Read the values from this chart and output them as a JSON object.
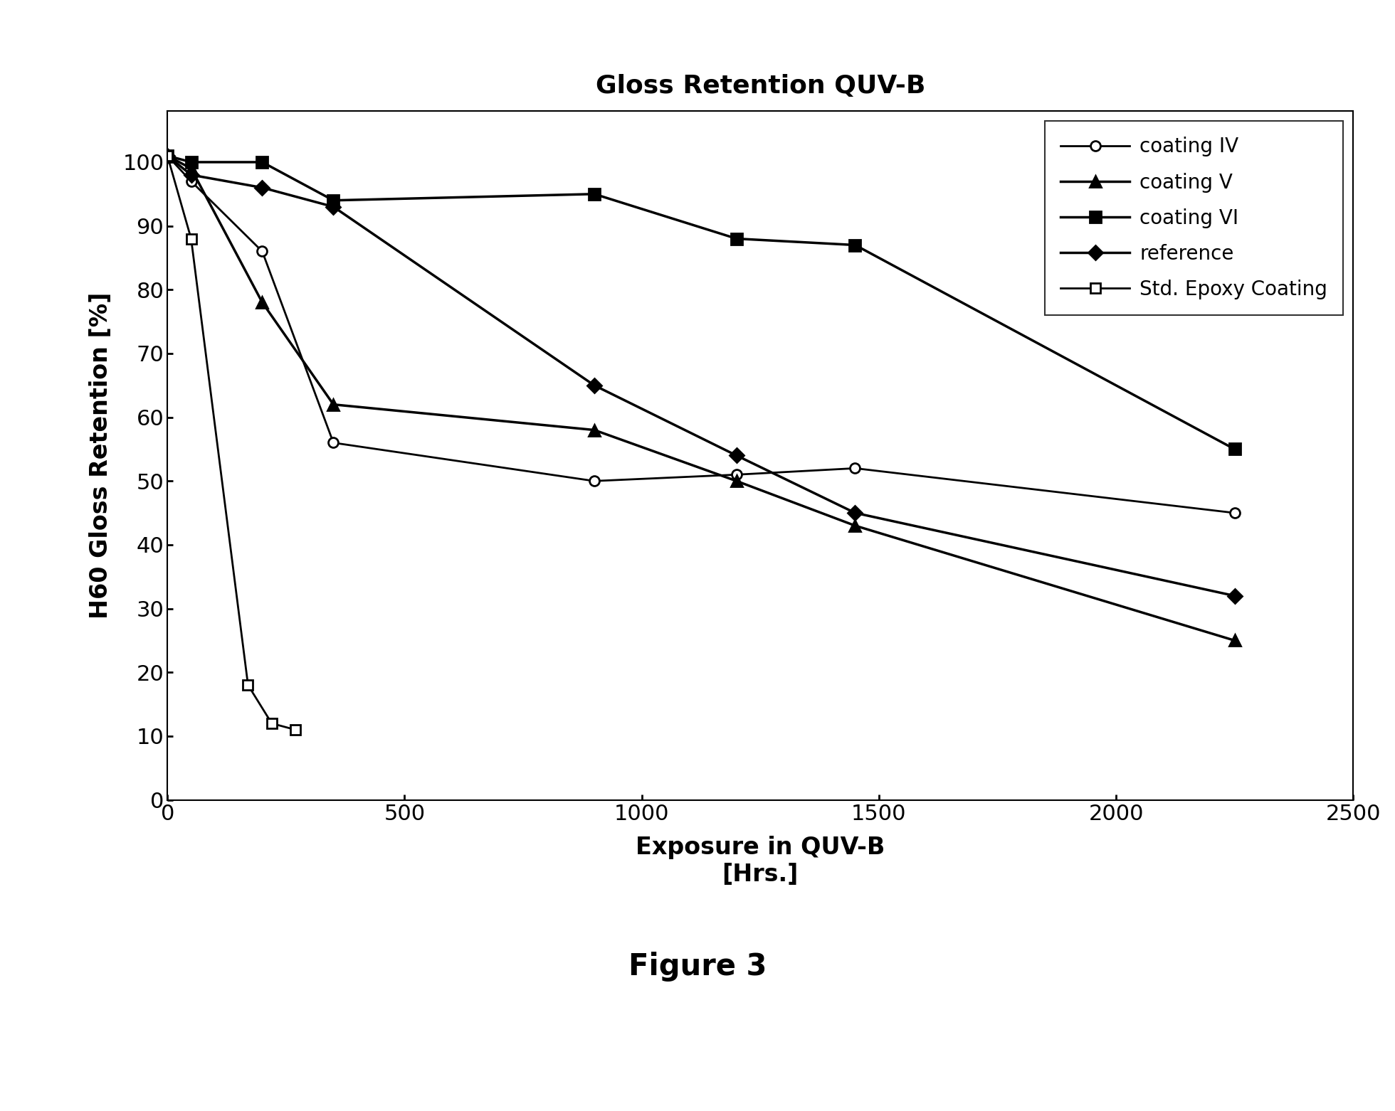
{
  "title": "Gloss Retention QUV-B",
  "xlabel_line1": "Exposure in QUV-B",
  "xlabel_line2": "[Hrs.]",
  "ylabel": "H60 Gloss Retention [%]",
  "figure_label": "Figure 3",
  "xlim": [
    0,
    2500
  ],
  "ylim": [
    0,
    108
  ],
  "xticks": [
    0,
    500,
    1000,
    1500,
    2000,
    2500
  ],
  "yticks": [
    0,
    10,
    20,
    30,
    40,
    50,
    60,
    70,
    80,
    90,
    100
  ],
  "series": [
    {
      "label": "coating IV",
      "x": [
        0,
        50,
        200,
        350,
        900,
        1200,
        1450,
        2250
      ],
      "y": [
        101,
        97,
        86,
        56,
        50,
        51,
        52,
        45
      ],
      "color": "#000000",
      "marker": "o",
      "markersize": 10,
      "linewidth": 2.0,
      "markerfacecolor": "white",
      "markeredgewidth": 2.0
    },
    {
      "label": "coating V",
      "x": [
        0,
        50,
        200,
        350,
        900,
        1200,
        1450,
        2250
      ],
      "y": [
        101,
        99,
        78,
        62,
        58,
        50,
        43,
        25
      ],
      "color": "#000000",
      "marker": "^",
      "markersize": 11,
      "linewidth": 2.5,
      "markerfacecolor": "#000000",
      "markeredgewidth": 2.0
    },
    {
      "label": "coating VI",
      "x": [
        0,
        50,
        200,
        350,
        900,
        1200,
        1450,
        2250
      ],
      "y": [
        101,
        100,
        100,
        94,
        95,
        88,
        87,
        55
      ],
      "color": "#000000",
      "marker": "s",
      "markersize": 11,
      "linewidth": 2.5,
      "markerfacecolor": "#000000",
      "markeredgewidth": 2.0
    },
    {
      "label": "reference",
      "x": [
        0,
        50,
        200,
        350,
        900,
        1200,
        1450,
        2250
      ],
      "y": [
        101,
        98,
        96,
        93,
        65,
        54,
        45,
        32
      ],
      "color": "#000000",
      "marker": "D",
      "markersize": 10,
      "linewidth": 2.5,
      "markerfacecolor": "#000000",
      "markeredgewidth": 2.0
    },
    {
      "label": "Std. Epoxy Coating",
      "x": [
        0,
        50,
        170,
        220,
        270
      ],
      "y": [
        101,
        88,
        18,
        12,
        11
      ],
      "color": "#000000",
      "marker": "s",
      "markersize": 10,
      "linewidth": 2.0,
      "markerfacecolor": "white",
      "markeredgewidth": 2.0
    }
  ],
  "tick_fontsize": 22,
  "label_fontsize": 24,
  "title_fontsize": 26,
  "legend_fontsize": 20,
  "figure_label_fontsize": 30
}
